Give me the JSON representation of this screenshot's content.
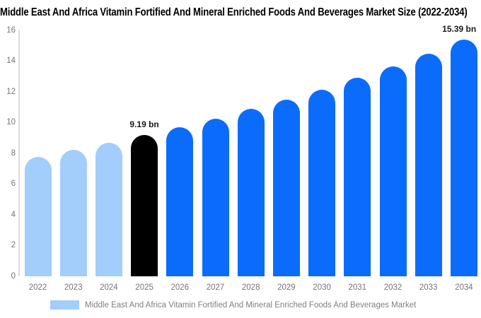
{
  "title": "Middle East And Africa Vitamin Fortified And Mineral Enriched Foods And Beverages Market Size (2022-2034)",
  "chart_data": {
    "type": "bar",
    "title": "Middle East And Africa Vitamin Fortified And Mineral Enriched Foods And Beverages Market Size (2022-2034)",
    "categories": [
      "2022",
      "2023",
      "2024",
      "2025",
      "2026",
      "2027",
      "2028",
      "2029",
      "2030",
      "2031",
      "2032",
      "2033",
      "2034"
    ],
    "values": [
      7.75,
      8.25,
      8.7,
      9.19,
      9.7,
      10.25,
      10.9,
      11.5,
      12.15,
      12.9,
      13.65,
      14.5,
      15.39
    ],
    "unit": "bn",
    "xlabel": "",
    "ylabel": "",
    "ylim": [
      0,
      16
    ],
    "yticks": [
      0,
      2,
      4,
      6,
      8,
      10,
      12,
      14,
      16
    ],
    "grid": false,
    "legend_position": "bottom",
    "bar_roles": [
      "past",
      "past",
      "past",
      "current",
      "forecast",
      "forecast",
      "forecast",
      "forecast",
      "forecast",
      "forecast",
      "forecast",
      "forecast",
      "forecast"
    ],
    "role_colors": {
      "past": "#a3cdfb",
      "current": "#000000",
      "forecast": "#0b6cfb"
    },
    "annotations": [
      {
        "category": "2025",
        "text": "9.19 bn"
      },
      {
        "category": "2034",
        "text": "15.39 bn"
      }
    ],
    "legend": {
      "label": "Middle East And Africa Vitamin Fortified And Mineral Enriched Foods And Beverages Market",
      "swatch_color": "#a3cdfb"
    }
  },
  "colors": {
    "axis_line": "#dcdcdc",
    "tick_text": "#757575",
    "annotation_text": "#1a1a1a",
    "legend_text": "#808080",
    "title_text": "#000000"
  }
}
